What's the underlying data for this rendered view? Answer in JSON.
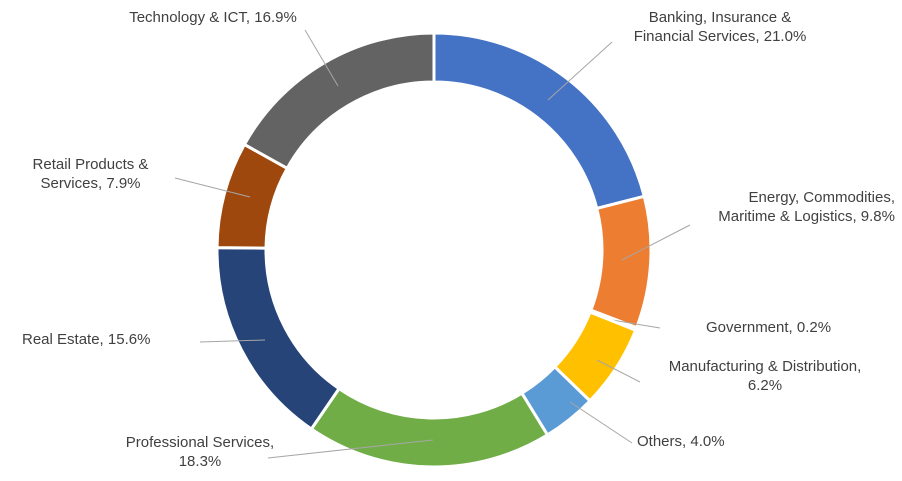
{
  "chart_data": {
    "type": "pie",
    "donut": true,
    "categories": [
      "Banking, Insurance & Financial Services,",
      "Energy, Commodities, Maritime & Logistics,",
      "Government,",
      "Manufacturing & Distribution,",
      "Others,",
      "Professional Services,",
      "Real Estate,",
      "Retail Products & Services,",
      "Technology & ICT,"
    ],
    "values": [
      21.0,
      9.8,
      0.2,
      6.2,
      4.0,
      18.3,
      15.6,
      7.9,
      16.9
    ],
    "value_labels": [
      "21.0%",
      "9.8%",
      "0.2%",
      "6.2%",
      "4.0%",
      "18.3%",
      "15.6%",
      "7.9%",
      "16.9%"
    ],
    "colors": [
      "#4472c4",
      "#ed7d31",
      "#a5a5a5",
      "#ffc000",
      "#5b9bd5",
      "#70ad47",
      "#264478",
      "#9e480e",
      "#636363"
    ]
  }
}
